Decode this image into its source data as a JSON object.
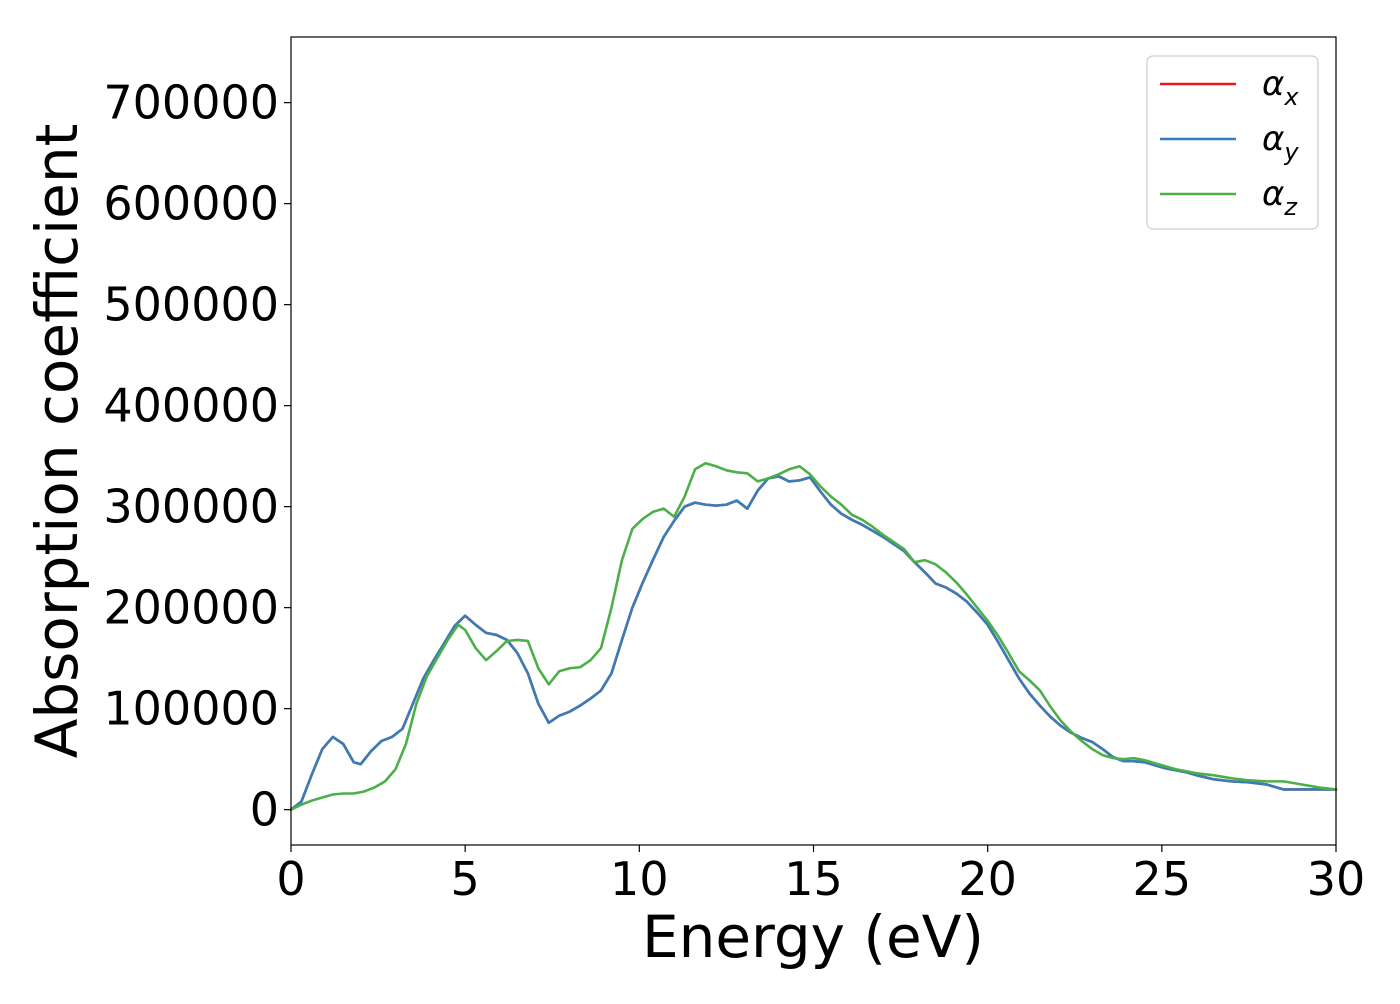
{
  "chart_data": {
    "type": "line",
    "title": "",
    "xlabel": "Energy (eV)",
    "ylabel": "Absorption coefficient",
    "xlim": [
      0,
      30
    ],
    "ylim": [
      -35000,
      765000
    ],
    "xticks": [
      0,
      5,
      10,
      15,
      20,
      25,
      30
    ],
    "xtick_labels": [
      "0",
      "5",
      "10",
      "15",
      "20",
      "25",
      "30"
    ],
    "yticks": [
      0,
      100000,
      200000,
      300000,
      400000,
      500000,
      600000,
      700000
    ],
    "ytick_labels": [
      "0",
      "100000",
      "200000",
      "300000",
      "400000",
      "500000",
      "600000",
      "700000"
    ],
    "grid": false,
    "legend_position": "top-right",
    "series": [
      {
        "name": "α",
        "subscript": "x",
        "color": "#e41a1c",
        "x": [
          0,
          0.3,
          0.6,
          0.9,
          1.2,
          1.5,
          1.8,
          2.0,
          2.3,
          2.6,
          2.9,
          3.2,
          3.5,
          3.8,
          4.1,
          4.4,
          4.7,
          5.0,
          5.3,
          5.6,
          5.9,
          6.2,
          6.5,
          6.8,
          7.1,
          7.4,
          7.7,
          8.0,
          8.3,
          8.6,
          8.9,
          9.2,
          9.5,
          9.8,
          10.1,
          10.4,
          10.7,
          11.0,
          11.3,
          11.6,
          11.9,
          12.2,
          12.5,
          12.8,
          13.1,
          13.4,
          13.7,
          14.0,
          14.3,
          14.6,
          14.9,
          15.2,
          15.5,
          15.8,
          16.1,
          16.4,
          16.7,
          17.0,
          17.3,
          17.6,
          17.9,
          18.2,
          18.5,
          18.8,
          19.1,
          19.4,
          19.7,
          20.0,
          20.3,
          20.6,
          20.9,
          21.2,
          21.5,
          21.8,
          22.1,
          22.4,
          22.7,
          23.0,
          23.3,
          23.6,
          23.9,
          24.2,
          24.5,
          24.8,
          25.1,
          25.4,
          25.7,
          26.0,
          26.5,
          27.0,
          27.5,
          28.0,
          28.5,
          29.0,
          29.5,
          30.0
        ],
        "y": [
          0,
          8000,
          35000,
          60000,
          72000,
          65000,
          47000,
          45000,
          58000,
          68000,
          72000,
          80000,
          105000,
          130000,
          148000,
          165000,
          182000,
          192000,
          183000,
          175000,
          173000,
          168000,
          155000,
          135000,
          105000,
          86000,
          93000,
          97000,
          103000,
          110000,
          118000,
          135000,
          168000,
          200000,
          225000,
          248000,
          270000,
          286000,
          300000,
          304000,
          302000,
          301000,
          302000,
          306000,
          298000,
          316000,
          328000,
          330000,
          325000,
          326000,
          329000,
          315000,
          302000,
          293000,
          287000,
          282000,
          276000,
          270000,
          263000,
          256000,
          245000,
          235000,
          224000,
          220000,
          214000,
          206000,
          195000,
          183000,
          166000,
          148000,
          130000,
          115000,
          103000,
          92000,
          83000,
          76000,
          71000,
          67000,
          60000,
          52000,
          48000,
          48000,
          47000,
          44000,
          41000,
          39000,
          37000,
          34000,
          30000,
          28000,
          27000,
          25000,
          20000,
          20000,
          20000,
          20000
        ]
      },
      {
        "name": "α",
        "subscript": "y",
        "color": "#377eb8",
        "x": [
          0,
          0.3,
          0.6,
          0.9,
          1.2,
          1.5,
          1.8,
          2.0,
          2.3,
          2.6,
          2.9,
          3.2,
          3.5,
          3.8,
          4.1,
          4.4,
          4.7,
          5.0,
          5.3,
          5.6,
          5.9,
          6.2,
          6.5,
          6.8,
          7.1,
          7.4,
          7.7,
          8.0,
          8.3,
          8.6,
          8.9,
          9.2,
          9.5,
          9.8,
          10.1,
          10.4,
          10.7,
          11.0,
          11.3,
          11.6,
          11.9,
          12.2,
          12.5,
          12.8,
          13.1,
          13.4,
          13.7,
          14.0,
          14.3,
          14.6,
          14.9,
          15.2,
          15.5,
          15.8,
          16.1,
          16.4,
          16.7,
          17.0,
          17.3,
          17.6,
          17.9,
          18.2,
          18.5,
          18.8,
          19.1,
          19.4,
          19.7,
          20.0,
          20.3,
          20.6,
          20.9,
          21.2,
          21.5,
          21.8,
          22.1,
          22.4,
          22.7,
          23.0,
          23.3,
          23.6,
          23.9,
          24.2,
          24.5,
          24.8,
          25.1,
          25.4,
          25.7,
          26.0,
          26.5,
          27.0,
          27.5,
          28.0,
          28.5,
          29.0,
          29.5,
          30.0
        ],
        "y": [
          0,
          8000,
          35000,
          60000,
          72000,
          65000,
          47000,
          45000,
          58000,
          68000,
          72000,
          80000,
          105000,
          130000,
          148000,
          165000,
          182000,
          192000,
          183000,
          175000,
          173000,
          168000,
          155000,
          135000,
          105000,
          86000,
          93000,
          97000,
          103000,
          110000,
          118000,
          135000,
          168000,
          200000,
          225000,
          248000,
          270000,
          286000,
          300000,
          304000,
          302000,
          301000,
          302000,
          306000,
          298000,
          316000,
          328000,
          330000,
          325000,
          326000,
          329000,
          315000,
          302000,
          293000,
          287000,
          282000,
          276000,
          270000,
          263000,
          256000,
          245000,
          235000,
          224000,
          220000,
          214000,
          206000,
          195000,
          183000,
          166000,
          148000,
          130000,
          115000,
          103000,
          92000,
          83000,
          76000,
          71000,
          67000,
          60000,
          52000,
          48000,
          48000,
          47000,
          44000,
          41000,
          39000,
          37000,
          34000,
          30000,
          28000,
          27000,
          25000,
          20000,
          20000,
          20000,
          20000
        ]
      },
      {
        "name": "α",
        "subscript": "z",
        "color": "#4daf4a",
        "x": [
          0,
          0.3,
          0.6,
          0.9,
          1.2,
          1.5,
          1.8,
          2.1,
          2.4,
          2.7,
          3.0,
          3.3,
          3.6,
          3.9,
          4.2,
          4.5,
          4.8,
          5.0,
          5.3,
          5.6,
          5.9,
          6.2,
          6.5,
          6.8,
          7.1,
          7.4,
          7.7,
          8.0,
          8.3,
          8.6,
          8.9,
          9.2,
          9.5,
          9.8,
          10.1,
          10.4,
          10.7,
          11.0,
          11.3,
          11.6,
          11.9,
          12.2,
          12.5,
          12.8,
          13.1,
          13.4,
          13.7,
          14.0,
          14.3,
          14.6,
          14.9,
          15.2,
          15.5,
          15.8,
          16.1,
          16.4,
          16.7,
          17.0,
          17.3,
          17.6,
          17.9,
          18.2,
          18.5,
          18.8,
          19.1,
          19.4,
          19.7,
          20.0,
          20.3,
          20.6,
          20.9,
          21.2,
          21.5,
          21.8,
          22.1,
          22.4,
          22.7,
          23.0,
          23.3,
          23.6,
          23.9,
          24.2,
          24.5,
          24.8,
          25.1,
          25.4,
          25.7,
          26.0,
          26.5,
          27.0,
          27.5,
          28.0,
          28.5,
          29.0,
          29.5,
          30.0
        ],
        "y": [
          0,
          5000,
          9000,
          12000,
          15000,
          16000,
          16000,
          18000,
          22000,
          28000,
          40000,
          65000,
          105000,
          132000,
          150000,
          168000,
          183000,
          178000,
          160000,
          148000,
          157000,
          167000,
          168000,
          167000,
          140000,
          124000,
          137000,
          140000,
          141000,
          148000,
          160000,
          200000,
          247000,
          278000,
          288000,
          295000,
          298000,
          290000,
          310000,
          337000,
          343000,
          340000,
          336000,
          334000,
          333000,
          325000,
          328000,
          332000,
          337000,
          340000,
          332000,
          320000,
          310000,
          302000,
          292000,
          287000,
          280000,
          272000,
          265000,
          258000,
          245000,
          247000,
          243000,
          235000,
          225000,
          213000,
          200000,
          187000,
          172000,
          155000,
          137000,
          128000,
          118000,
          102000,
          88000,
          77000,
          68000,
          60000,
          54000,
          51000,
          50000,
          51000,
          49000,
          46000,
          43000,
          40000,
          38000,
          36000,
          34000,
          31000,
          29000,
          28000,
          28000,
          25000,
          22000,
          20000
        ]
      }
    ]
  }
}
